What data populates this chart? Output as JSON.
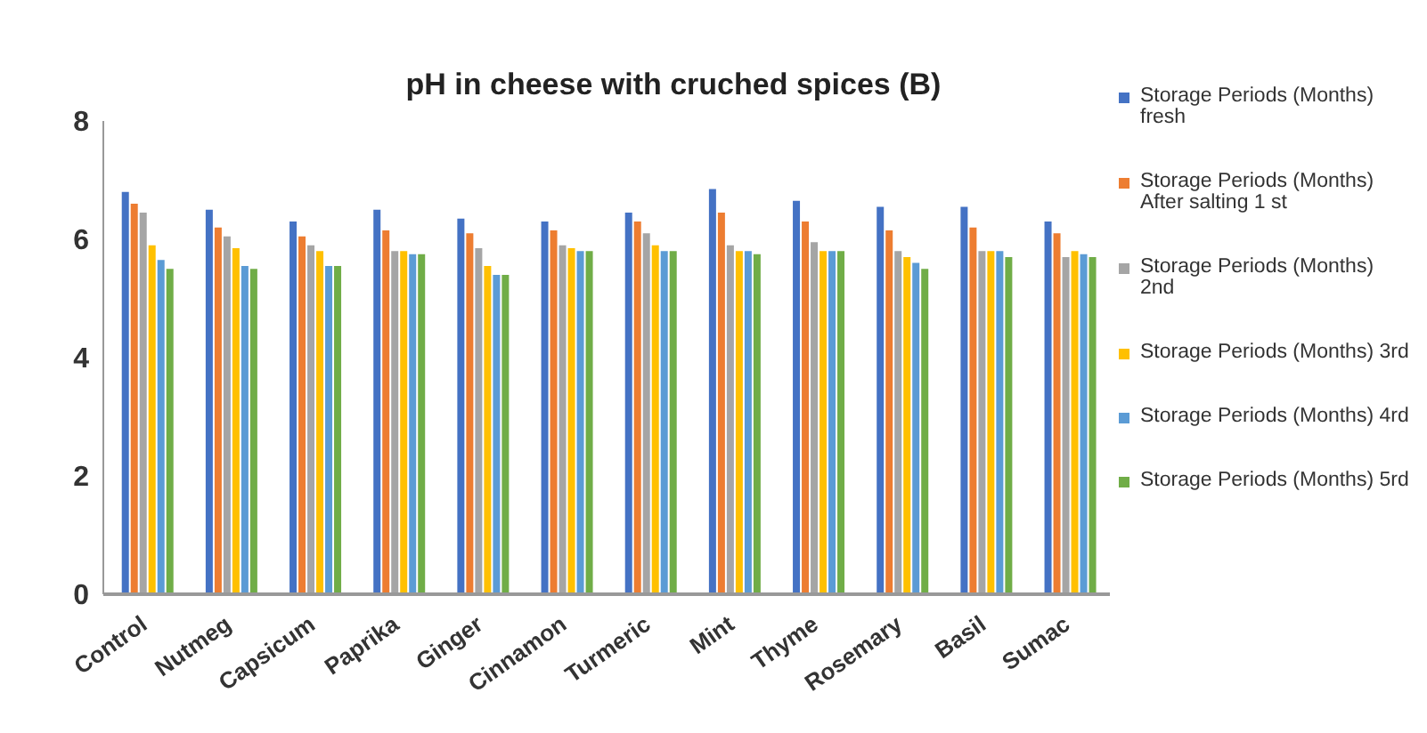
{
  "chart_data": {
    "type": "bar",
    "title": "pH in cheese with cruched spices (B)",
    "categories": [
      "Control",
      "Nutmeg",
      "Capsicum",
      "Paprika",
      "Ginger",
      "Cinnamon",
      "Turmeric",
      "Mint",
      "Thyme",
      "Rosemary",
      "Basil",
      "Sumac"
    ],
    "series": [
      {
        "name": "Storage Periods (Months) fresh",
        "color": "#4472c4",
        "values": [
          6.8,
          6.5,
          6.3,
          6.5,
          6.35,
          6.3,
          6.45,
          6.85,
          6.65,
          6.55,
          6.55,
          6.3
        ]
      },
      {
        "name": "Storage Periods (Months) After salting 1 st",
        "color": "#ed7d31",
        "values": [
          6.6,
          6.2,
          6.05,
          6.15,
          6.1,
          6.15,
          6.3,
          6.45,
          6.3,
          6.15,
          6.2,
          6.1
        ]
      },
      {
        "name": "Storage Periods (Months) 2nd",
        "color": "#a5a5a5",
        "values": [
          6.45,
          6.05,
          5.9,
          5.8,
          5.85,
          5.9,
          6.1,
          5.9,
          5.95,
          5.8,
          5.8,
          5.7
        ]
      },
      {
        "name": "Storage Periods (Months) 3rd",
        "color": "#ffc000",
        "values": [
          5.9,
          5.85,
          5.8,
          5.8,
          5.55,
          5.85,
          5.9,
          5.8,
          5.8,
          5.7,
          5.8,
          5.8
        ]
      },
      {
        "name": "Storage Periods (Months) 4rd",
        "color": "#5b9bd5",
        "values": [
          5.65,
          5.55,
          5.55,
          5.75,
          5.4,
          5.8,
          5.8,
          5.8,
          5.8,
          5.6,
          5.8,
          5.75
        ]
      },
      {
        "name": "Storage Periods (Months) 5rd",
        "color": "#70ad47",
        "values": [
          5.5,
          5.5,
          5.55,
          5.75,
          5.4,
          5.8,
          5.8,
          5.75,
          5.8,
          5.5,
          5.7,
          5.7
        ]
      }
    ],
    "ylim": [
      0,
      8
    ],
    "yticks": [
      0,
      2,
      4,
      6,
      8
    ],
    "grid": false,
    "legend": "right"
  }
}
